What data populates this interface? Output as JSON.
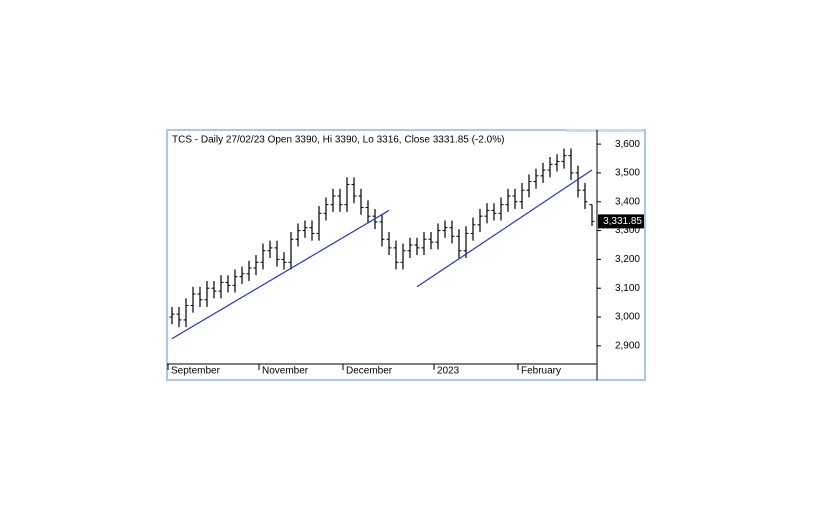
{
  "chart_data": {
    "type": "ohlc",
    "title": "TCS - Daily 27/02/23 Open 3390, Hi 3390, Lo 3316, Close 3331.85 (-2.0%)",
    "categories": [
      "September",
      null,
      null,
      null,
      null,
      null,
      null,
      null,
      null,
      null,
      null,
      null,
      null,
      "November",
      null,
      null,
      null,
      null,
      null,
      null,
      null,
      null,
      null,
      null,
      null,
      "December",
      null,
      null,
      null,
      null,
      null,
      null,
      null,
      null,
      null,
      null,
      null,
      null,
      "2023",
      null,
      null,
      null,
      null,
      null,
      null,
      null,
      null,
      null,
      null,
      null,
      "February",
      null,
      null,
      null,
      null,
      null,
      null,
      null,
      null,
      null,
      null
    ],
    "open": [
      3000,
      3010,
      2990,
      3040,
      3080,
      3060,
      3100,
      3090,
      3120,
      3110,
      3140,
      3150,
      3170,
      3190,
      3230,
      3240,
      3200,
      3190,
      3270,
      3300,
      3310,
      3290,
      3360,
      3390,
      3420,
      3390,
      3460,
      3420,
      3380,
      3350,
      3330,
      3270,
      3240,
      3190,
      3230,
      3250,
      3240,
      3270,
      3260,
      3300,
      3310,
      3280,
      3230,
      3290,
      3320,
      3350,
      3370,
      3360,
      3390,
      3420,
      3400,
      3440,
      3470,
      3490,
      3510,
      3530,
      3540,
      3560,
      3500,
      3440,
      3390
    ],
    "high": [
      3035,
      3035,
      3065,
      3105,
      3105,
      3125,
      3125,
      3145,
      3145,
      3165,
      3175,
      3195,
      3215,
      3255,
      3265,
      3265,
      3225,
      3295,
      3325,
      3335,
      3335,
      3385,
      3415,
      3445,
      3445,
      3485,
      3485,
      3445,
      3405,
      3375,
      3355,
      3295,
      3265,
      3255,
      3275,
      3275,
      3295,
      3295,
      3325,
      3335,
      3335,
      3305,
      3315,
      3345,
      3375,
      3395,
      3395,
      3415,
      3445,
      3445,
      3465,
      3495,
      3515,
      3535,
      3555,
      3565,
      3585,
      3585,
      3525,
      3465,
      3390
    ],
    "low": [
      2975,
      2965,
      2965,
      3015,
      3035,
      3035,
      3065,
      3065,
      3085,
      3085,
      3115,
      3125,
      3145,
      3165,
      3205,
      3175,
      3165,
      3165,
      3245,
      3275,
      3265,
      3265,
      3335,
      3365,
      3365,
      3365,
      3395,
      3355,
      3325,
      3305,
      3245,
      3215,
      3165,
      3165,
      3205,
      3215,
      3215,
      3235,
      3235,
      3275,
      3255,
      3205,
      3205,
      3265,
      3295,
      3325,
      3335,
      3335,
      3365,
      3375,
      3375,
      3415,
      3445,
      3465,
      3485,
      3505,
      3515,
      3475,
      3415,
      3375,
      3316
    ],
    "close": [
      3010,
      2990,
      3040,
      3080,
      3060,
      3100,
      3090,
      3120,
      3110,
      3140,
      3150,
      3170,
      3190,
      3230,
      3240,
      3200,
      3190,
      3270,
      3300,
      3310,
      3290,
      3360,
      3390,
      3420,
      3390,
      3460,
      3420,
      3380,
      3350,
      3330,
      3270,
      3240,
      3190,
      3230,
      3250,
      3240,
      3270,
      3260,
      3300,
      3310,
      3280,
      3230,
      3290,
      3320,
      3350,
      3370,
      3360,
      3390,
      3420,
      3400,
      3440,
      3470,
      3490,
      3510,
      3530,
      3540,
      3560,
      3500,
      3440,
      3400,
      3331.85
    ],
    "color": "#000000",
    "last_price": {
      "value": 3331.85,
      "label": "3,331.85"
    },
    "trendlines": [
      {
        "x": [
          0,
          31
        ],
        "y": [
          2925,
          3370
        ],
        "color": "#2233dd"
      },
      {
        "x": [
          35,
          60
        ],
        "y": [
          3105,
          3510
        ],
        "color": "#2233dd"
      }
    ],
    "ylim": [
      2837,
      3649
    ],
    "yticks": [
      {
        "value": 2900,
        "label": "2,900"
      },
      {
        "value": 3000,
        "label": "3,000"
      },
      {
        "value": 3100,
        "label": "3,100"
      },
      {
        "value": 3200,
        "label": "3,200"
      },
      {
        "value": 3300,
        "label": "3,300"
      },
      {
        "value": 3400,
        "label": "3,400"
      },
      {
        "value": 3500,
        "label": "3,500"
      },
      {
        "value": 3600,
        "label": "3,600"
      }
    ],
    "axis_side": "right"
  }
}
